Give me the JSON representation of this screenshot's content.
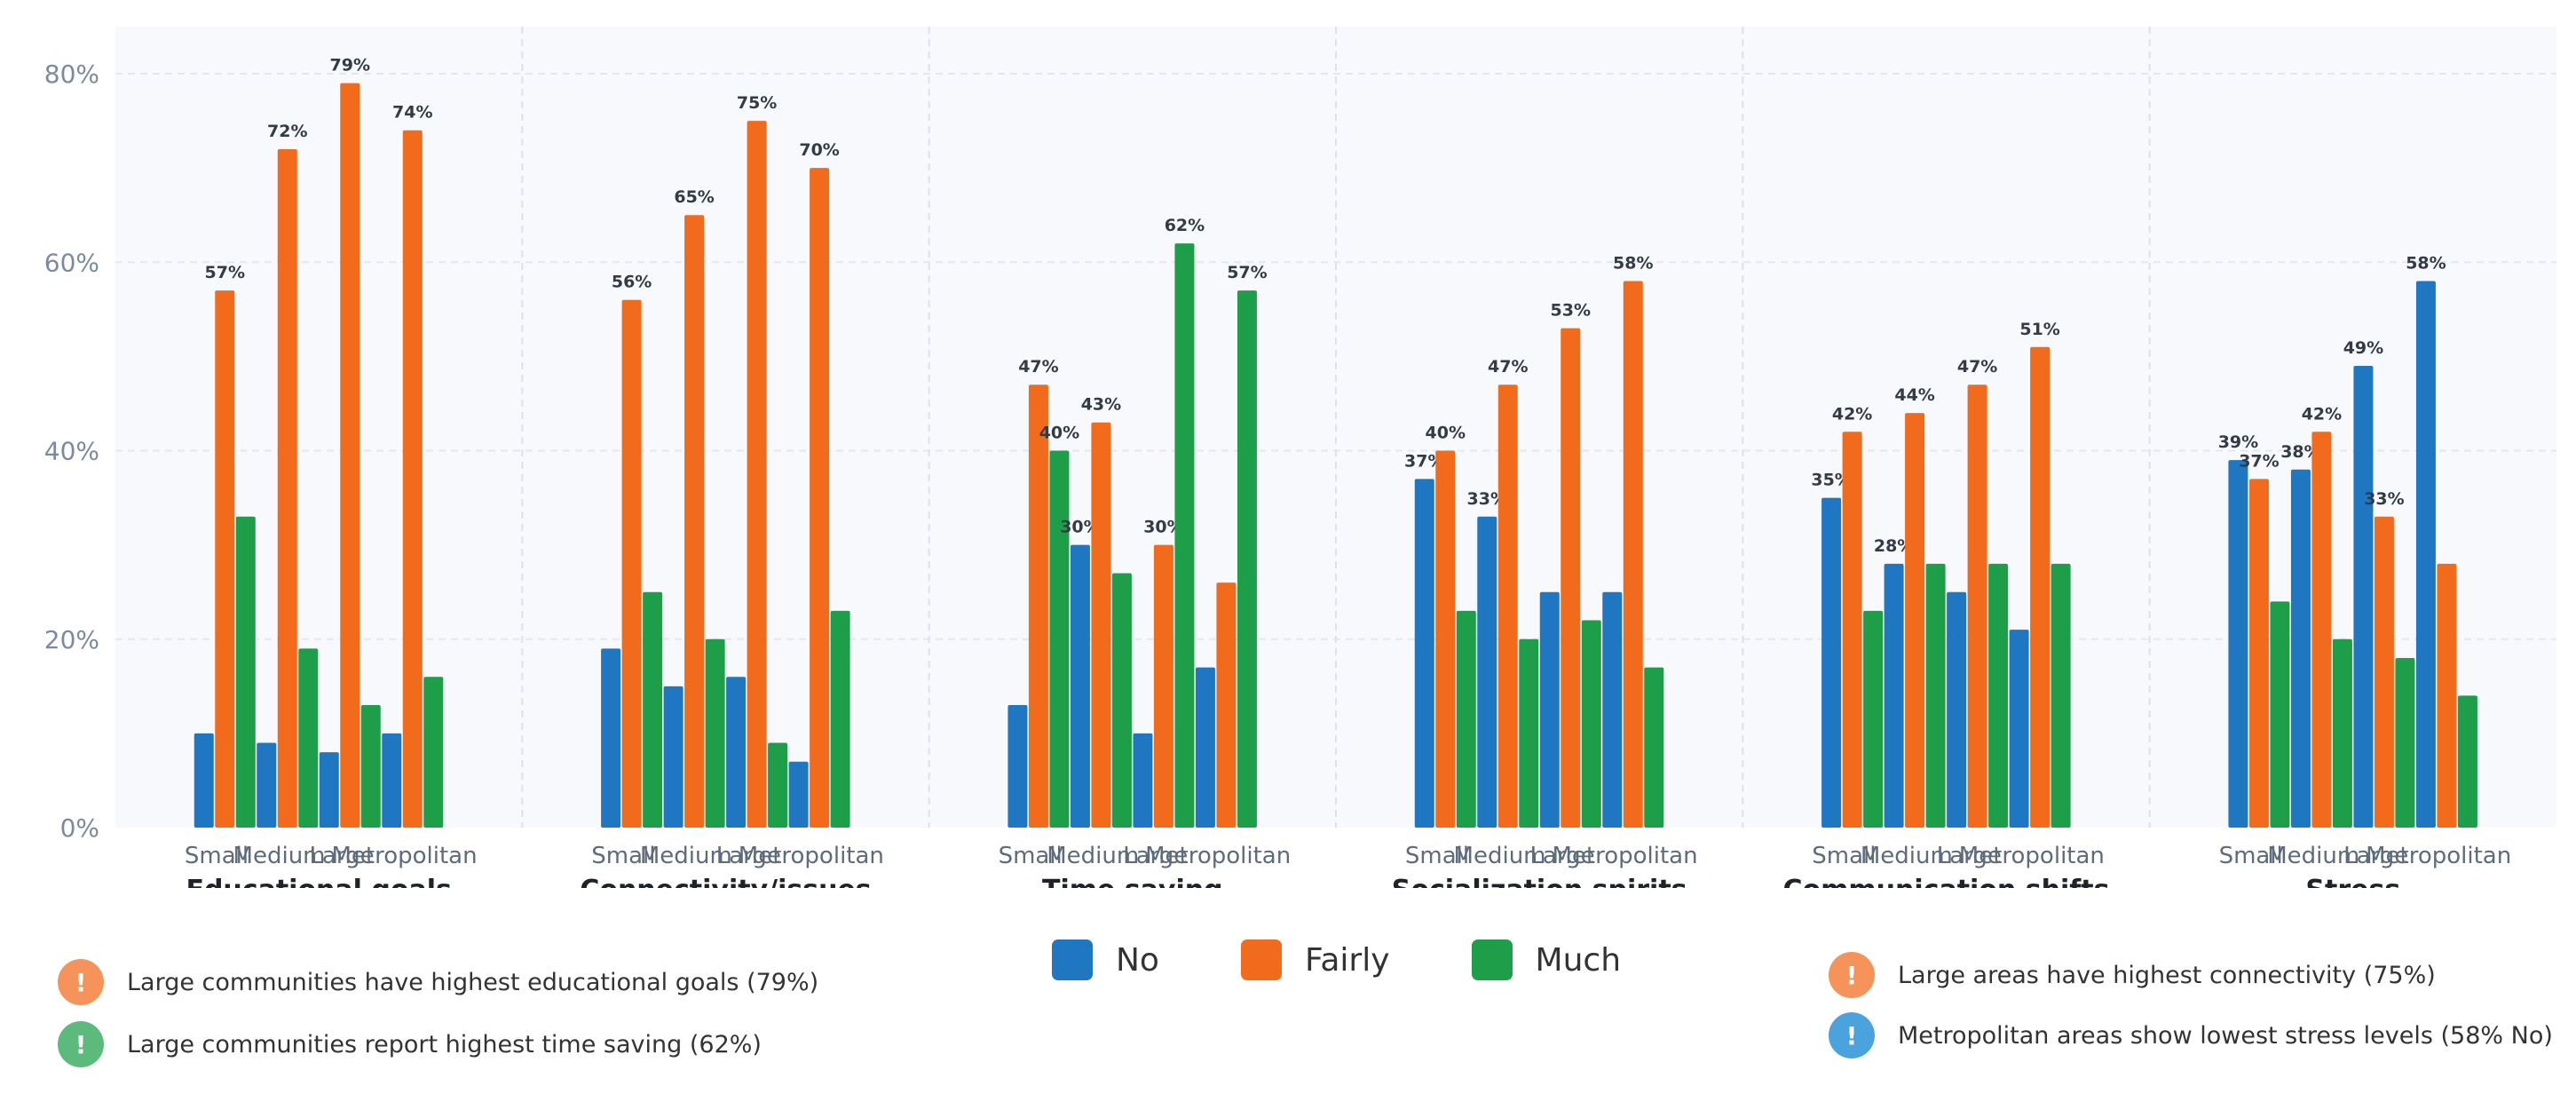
{
  "chart_data": {
    "type": "bar",
    "yticks": [
      "0%",
      "20%",
      "40%",
      "60%",
      "80%"
    ],
    "ylim": [
      0,
      85
    ],
    "subcategories": [
      "Small",
      "Medium",
      "Large",
      "Metropolitan"
    ],
    "series_names": [
      "No",
      "Fairly",
      "Much"
    ],
    "colors": {
      "No": "#1f77c1",
      "Fairly": "#f26a1b",
      "Much": "#1f9e4a"
    },
    "groups": [
      {
        "name": "Educational goals",
        "bars": [
          {
            "series": "No",
            "value": 10
          },
          {
            "series": "Fairly",
            "value": 57,
            "label": "57%"
          },
          {
            "series": "Much",
            "value": 33
          },
          {
            "series": "No",
            "value": 9
          },
          {
            "series": "Fairly",
            "value": 72,
            "label": "72%"
          },
          {
            "series": "Much",
            "value": 19
          },
          {
            "series": "No",
            "value": 8
          },
          {
            "series": "Fairly",
            "value": 79,
            "label": "79%"
          },
          {
            "series": "Much",
            "value": 13
          },
          {
            "series": "No",
            "value": 10
          },
          {
            "series": "Fairly",
            "value": 74,
            "label": "74%"
          },
          {
            "series": "Much",
            "value": 16
          }
        ]
      },
      {
        "name": "Connectivity/issues",
        "bars": [
          {
            "series": "No",
            "value": 19
          },
          {
            "series": "Fairly",
            "value": 56,
            "label": "56%"
          },
          {
            "series": "Much",
            "value": 25
          },
          {
            "series": "No",
            "value": 15
          },
          {
            "series": "Fairly",
            "value": 65,
            "label": "65%"
          },
          {
            "series": "Much",
            "value": 20
          },
          {
            "series": "No",
            "value": 16
          },
          {
            "series": "Fairly",
            "value": 75,
            "label": "75%"
          },
          {
            "series": "Much",
            "value": 9
          },
          {
            "series": "No",
            "value": 7
          },
          {
            "series": "Fairly",
            "value": 70,
            "label": "70%"
          },
          {
            "series": "Much",
            "value": 23
          }
        ]
      },
      {
        "name": "Time saving",
        "bars": [
          {
            "series": "No",
            "value": 13
          },
          {
            "series": "Fairly",
            "value": 47,
            "label": "47%"
          },
          {
            "series": "Much",
            "value": 40,
            "label": "40%"
          },
          {
            "series": "No",
            "value": 30,
            "label": "30%"
          },
          {
            "series": "Fairly",
            "value": 43,
            "label": "43%"
          },
          {
            "series": "Much",
            "value": 27
          },
          {
            "series": "No",
            "value": 10
          },
          {
            "series": "Fairly",
            "value": 30,
            "label": "30%"
          },
          {
            "series": "Much",
            "value": 62,
            "label": "62%"
          },
          {
            "series": "No",
            "value": 17
          },
          {
            "series": "Fairly",
            "value": 26
          },
          {
            "series": "Much",
            "value": 57,
            "label": "57%"
          }
        ]
      },
      {
        "name": "Socialization spirits",
        "bars": [
          {
            "series": "No",
            "value": 37,
            "label": "37%"
          },
          {
            "series": "Fairly",
            "value": 40,
            "label": "40%"
          },
          {
            "series": "Much",
            "value": 23
          },
          {
            "series": "No",
            "value": 33,
            "label": "33%"
          },
          {
            "series": "Fairly",
            "value": 47,
            "label": "47%"
          },
          {
            "series": "Much",
            "value": 20
          },
          {
            "series": "No",
            "value": 25
          },
          {
            "series": "Fairly",
            "value": 53,
            "label": "53%"
          },
          {
            "series": "Much",
            "value": 22
          },
          {
            "series": "No",
            "value": 25
          },
          {
            "series": "Fairly",
            "value": 58,
            "label": "58%"
          },
          {
            "series": "Much",
            "value": 17
          }
        ]
      },
      {
        "name": "Communication shifts",
        "bars": [
          {
            "series": "No",
            "value": 35,
            "label": "35%"
          },
          {
            "series": "Fairly",
            "value": 42,
            "label": "42%"
          },
          {
            "series": "Much",
            "value": 23
          },
          {
            "series": "No",
            "value": 28,
            "label": "28%"
          },
          {
            "series": "Fairly",
            "value": 44,
            "label": "44%"
          },
          {
            "series": "Much",
            "value": 28
          },
          {
            "series": "No",
            "value": 25
          },
          {
            "series": "Fairly",
            "value": 47,
            "label": "47%"
          },
          {
            "series": "Much",
            "value": 28
          },
          {
            "series": "No",
            "value": 21
          },
          {
            "series": "Fairly",
            "value": 51,
            "label": "51%"
          },
          {
            "series": "Much",
            "value": 28
          }
        ]
      },
      {
        "name": "Stress",
        "bars": [
          {
            "series": "No",
            "value": 39,
            "label": "39%"
          },
          {
            "series": "Fairly",
            "value": 37,
            "label": "37%"
          },
          {
            "series": "Much",
            "value": 24
          },
          {
            "series": "No",
            "value": 38,
            "label": "38%"
          },
          {
            "series": "Fairly",
            "value": 42,
            "label": "42%"
          },
          {
            "series": "Much",
            "value": 20
          },
          {
            "series": "No",
            "value": 49,
            "label": "49%"
          },
          {
            "series": "Fairly",
            "value": 33,
            "label": "33%"
          },
          {
            "series": "Much",
            "value": 18
          },
          {
            "series": "No",
            "value": 58,
            "label": "58%"
          },
          {
            "series": "Fairly",
            "value": 28
          },
          {
            "series": "Much",
            "value": 14
          }
        ]
      }
    ]
  },
  "legend": [
    {
      "label": "No",
      "color": "#1f77c1"
    },
    {
      "label": "Fairly",
      "color": "#f26a1b"
    },
    {
      "label": "Much",
      "color": "#1f9e4a"
    }
  ],
  "notes": [
    {
      "text": "Large communities have highest educational goals (79%)",
      "icon": "!",
      "color": "#f5935a"
    },
    {
      "text": "Large communities report highest time saving (62%)",
      "icon": "!",
      "color": "#5cba7c"
    },
    {
      "text": "Large areas have highest connectivity (75%)",
      "icon": "!",
      "color": "#f5935a"
    },
    {
      "text": "Metropolitan areas show lowest stress levels (58% No)",
      "icon": "!",
      "color": "#4aa3dc"
    }
  ]
}
